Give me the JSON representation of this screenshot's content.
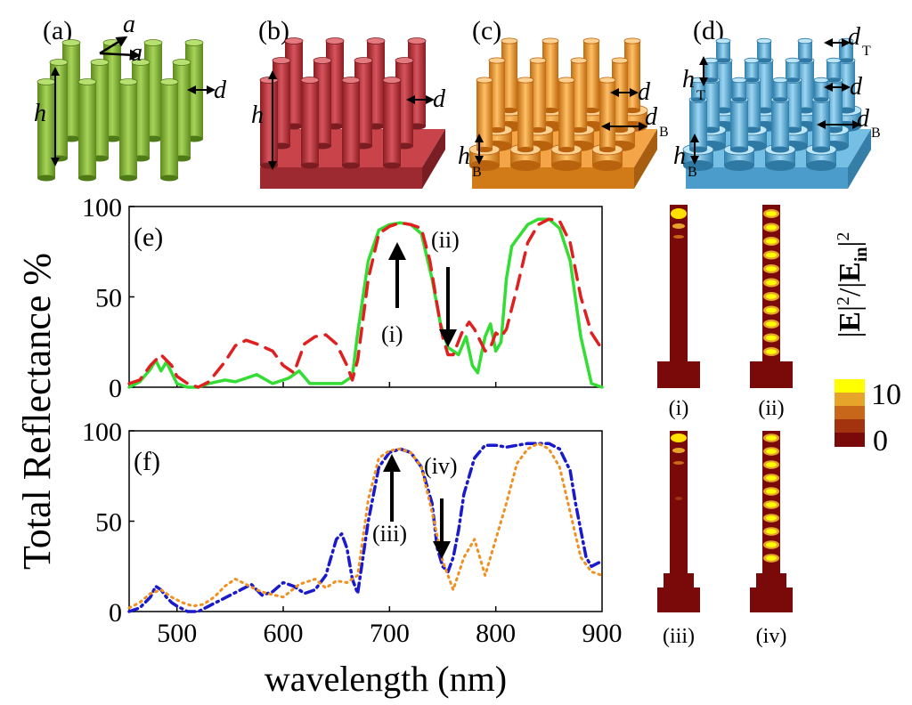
{
  "figure": {
    "panel_labels": [
      "(a)",
      "(b)",
      "(c)",
      "(d)",
      "(e)",
      "(f)"
    ],
    "field_labels": [
      "(i)",
      "(ii)",
      "(iii)",
      "(iv)"
    ],
    "colorbar": {
      "title": "|E|²/|E_in|²",
      "max_label": "10",
      "min_label": "0",
      "colors": [
        "#7a0a0a",
        "#a3320e",
        "#c8661a",
        "#e6a52a",
        "#ffff00"
      ]
    },
    "schematics": {
      "a": {
        "color": "#8dbf3c",
        "labels": {
          "a1": "a",
          "a2": "a",
          "h": "h",
          "d": "d"
        }
      },
      "b": {
        "color": "#c0303a",
        "labels": {
          "h": "h",
          "d": "d"
        }
      },
      "c": {
        "color": "#f0962a",
        "labels": {
          "d": "d",
          "dB": "d",
          "dB_sub": "B",
          "hB": "h",
          "hB_sub": "B"
        }
      },
      "d": {
        "color": "#5fb3dc",
        "labels": {
          "dT": "d",
          "dT_sub": "T",
          "hT": "h",
          "hT_sub": "T",
          "d": "d",
          "dB": "d",
          "dB_sub": "B",
          "hB": "h",
          "hB_sub": "B"
        }
      }
    }
  },
  "chart_data": [
    {
      "type": "line",
      "panel": "(e)",
      "ylabel": "Total Reflectance %",
      "xlim": [
        455,
        900
      ],
      "ylim": [
        0,
        100
      ],
      "yticks": [
        0,
        50,
        100
      ],
      "annotations": [
        "(i)",
        "(ii)"
      ],
      "series": [
        {
          "color": "#33dd33",
          "style": "solid",
          "x": [
            455,
            465,
            475,
            480,
            485,
            490,
            495,
            500,
            510,
            520,
            530,
            545,
            555,
            565,
            575,
            590,
            605,
            615,
            625,
            640,
            655,
            665,
            670,
            680,
            690,
            700,
            710,
            720,
            730,
            740,
            748,
            755,
            765,
            772,
            778,
            783,
            787,
            790,
            795,
            800,
            805,
            810,
            815,
            820,
            825,
            830,
            840,
            850,
            860,
            870,
            880,
            890,
            900
          ],
          "y": [
            0,
            3,
            10,
            15,
            9,
            14,
            8,
            2,
            0,
            0,
            2,
            4,
            3,
            5,
            7,
            2,
            5,
            9,
            2,
            2,
            2,
            6,
            30,
            70,
            87,
            90,
            91,
            90,
            85,
            60,
            35,
            22,
            18,
            28,
            12,
            8,
            20,
            28,
            35,
            20,
            25,
            60,
            78,
            82,
            86,
            90,
            93,
            93,
            88,
            70,
            28,
            2,
            0
          ]
        },
        {
          "color": "#e02020",
          "style": "dashed",
          "x": [
            455,
            465,
            475,
            485,
            495,
            500,
            510,
            520,
            530,
            545,
            555,
            565,
            575,
            590,
            600,
            610,
            620,
            630,
            640,
            650,
            660,
            665,
            670,
            680,
            690,
            700,
            710,
            720,
            730,
            738,
            745,
            750,
            755,
            760,
            768,
            775,
            780,
            785,
            790,
            795,
            800,
            805,
            810,
            820,
            830,
            840,
            850,
            860,
            870,
            880,
            890,
            900
          ],
          "y": [
            2,
            4,
            12,
            18,
            12,
            6,
            2,
            0,
            3,
            14,
            23,
            26,
            24,
            20,
            12,
            8,
            24,
            28,
            29,
            24,
            12,
            4,
            15,
            60,
            85,
            89,
            91,
            90,
            88,
            70,
            45,
            28,
            18,
            18,
            30,
            36,
            32,
            26,
            20,
            22,
            30,
            28,
            32,
            55,
            80,
            90,
            93,
            92,
            80,
            50,
            30,
            21
          ]
        }
      ]
    },
    {
      "type": "line",
      "panel": "(f)",
      "xlabel": "wavelength (nm)",
      "xlim": [
        455,
        900
      ],
      "ylim": [
        0,
        100
      ],
      "xticks": [
        500,
        600,
        700,
        800,
        900
      ],
      "yticks": [
        0,
        50,
        100
      ],
      "annotations": [
        "(iii)",
        "(iv)"
      ],
      "series": [
        {
          "color": "#1a1acc",
          "style": "dashdot",
          "x": [
            455,
            465,
            475,
            480,
            485,
            490,
            495,
            500,
            510,
            520,
            530,
            540,
            550,
            560,
            570,
            580,
            590,
            600,
            610,
            620,
            630,
            640,
            645,
            650,
            655,
            660,
            665,
            670,
            680,
            690,
            700,
            710,
            720,
            730,
            740,
            745,
            750,
            755,
            760,
            765,
            770,
            780,
            790,
            800,
            810,
            820,
            830,
            840,
            850,
            860,
            870,
            875,
            880,
            885,
            890,
            900
          ],
          "y": [
            0,
            2,
            8,
            14,
            12,
            8,
            5,
            3,
            0,
            0,
            3,
            6,
            9,
            12,
            15,
            9,
            11,
            16,
            14,
            10,
            12,
            20,
            30,
            40,
            43,
            35,
            18,
            10,
            50,
            80,
            88,
            90,
            88,
            80,
            60,
            35,
            25,
            22,
            30,
            45,
            65,
            85,
            92,
            92,
            91,
            92,
            93,
            93,
            93,
            90,
            78,
            60,
            45,
            30,
            25,
            28
          ]
        },
        {
          "color": "#f09020",
          "style": "dotted",
          "x": [
            455,
            465,
            475,
            485,
            495,
            505,
            515,
            525,
            535,
            545,
            555,
            565,
            575,
            585,
            600,
            615,
            630,
            640,
            650,
            660,
            670,
            680,
            690,
            700,
            710,
            720,
            730,
            740,
            750,
            760,
            770,
            780,
            790,
            800,
            810,
            820,
            830,
            840,
            850,
            860,
            870,
            880,
            890,
            900
          ],
          "y": [
            2,
            5,
            10,
            12,
            8,
            5,
            3,
            4,
            8,
            14,
            18,
            15,
            12,
            10,
            8,
            15,
            18,
            13,
            17,
            16,
            20,
            62,
            85,
            89,
            90,
            88,
            80,
            55,
            28,
            12,
            30,
            40,
            20,
            40,
            60,
            82,
            90,
            93,
            90,
            80,
            55,
            30,
            22,
            20
          ]
        }
      ]
    }
  ]
}
